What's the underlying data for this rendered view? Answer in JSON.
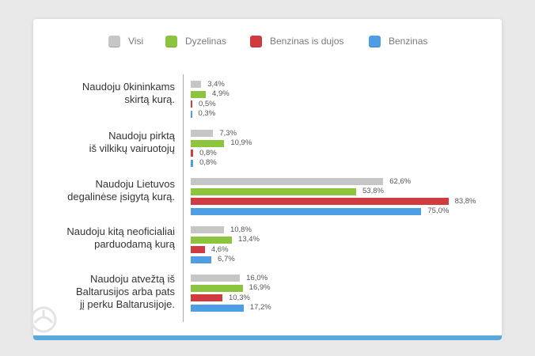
{
  "chart_data": {
    "type": "bar",
    "orientation": "horizontal",
    "legend_position": "top",
    "colors": [
      "#c6c6c6",
      "#8dc43e",
      "#d13a3e",
      "#4d9ee3"
    ],
    "series": [
      {
        "name": "Visi",
        "values": [
          3.4,
          7.3,
          62.6,
          10.8,
          16.0
        ],
        "labels": [
          "3,4%",
          "7,3%",
          "62,6%",
          "10,8%",
          "16,0%"
        ]
      },
      {
        "name": "Dyzelinas",
        "values": [
          4.9,
          10.9,
          53.8,
          13.4,
          16.9
        ],
        "labels": [
          "4,9%",
          "10,9%",
          "53,8%",
          "13,4%",
          "16,9%"
        ]
      },
      {
        "name": "Benzinas is dujos",
        "values": [
          0.5,
          0.8,
          83.8,
          4.6,
          10.3
        ],
        "labels": [
          "0,5%",
          "0,8%",
          "83,8%",
          "4,6%",
          "10,3%"
        ]
      },
      {
        "name": "Benzinas",
        "values": [
          0.3,
          0.8,
          75.0,
          6.7,
          17.2
        ],
        "labels": [
          "0,3%",
          "0,8%",
          "75,0%",
          "6,7%",
          "17,2%"
        ]
      }
    ],
    "categories": [
      [
        "Naudoju 0kininkams",
        "skirtą kurą."
      ],
      [
        "Naudoju pirktą",
        "iš vilkikų vairuotojų"
      ],
      [
        "Naudoju Lietuvos",
        "degalinėse įsigytą kurą."
      ],
      [
        "Naudoju kitą neoficialiai",
        "parduodamą kurą"
      ],
      [
        "Naudoju atvežtą iš",
        "Baltarusijos arba pats",
        "jį perku Baltarusijoje."
      ]
    ]
  }
}
